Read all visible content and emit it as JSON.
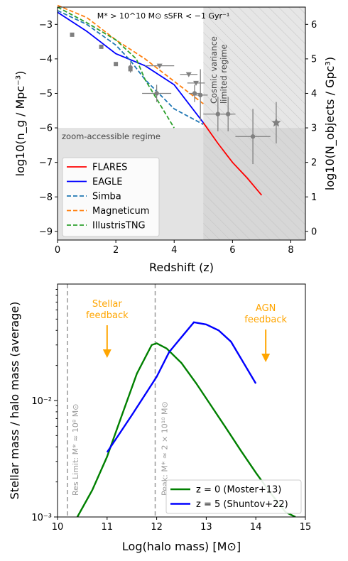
{
  "chart_data": [
    {
      "type": "line",
      "title": "M* > 10^10 M⊙ sSFR < −1 Gyr⁻¹",
      "xlabel": "Redshift (z)",
      "ylabel": "log10(n_g / Mpc⁻³)",
      "ylabel_right": "log10(N_objects / Gpc³)",
      "xlim": [
        0,
        8.5
      ],
      "ylim": [
        -9.25,
        -2.5
      ],
      "ylim_right": [
        -0.25,
        6.5
      ],
      "xticks": [
        0,
        2,
        4,
        6,
        8
      ],
      "yticks": [
        -9,
        -8,
        -7,
        -6,
        -5,
        -4,
        -3
      ],
      "yticks_right": [
        0,
        1,
        2,
        3,
        4,
        5,
        6
      ],
      "legend_position": "lower-left",
      "grid": false,
      "annotations": [
        "zoom-accessible regime",
        "Cosmic variance limited regime"
      ],
      "regions": {
        "zoom_accessible_ymax": -6.0,
        "cosmic_variance_xmin": 5.0
      },
      "series": [
        {
          "name": "FLARES",
          "color": "#ff0000",
          "style": "solid",
          "x": [
            5,
            5.5,
            6,
            6.5,
            7
          ],
          "y": [
            -5.85,
            -6.45,
            -7.0,
            -7.45,
            -7.95
          ]
        },
        {
          "name": "EAGLE",
          "color": "#0000ff",
          "style": "solid",
          "x": [
            0,
            1,
            2,
            3,
            4,
            5
          ],
          "y": [
            -2.65,
            -3.2,
            -3.85,
            -4.2,
            -4.75,
            -5.85
          ]
        },
        {
          "name": "Simba",
          "color": "#1f77b4",
          "style": "dashed",
          "x": [
            0,
            1,
            2,
            2.5,
            3,
            4,
            5
          ],
          "y": [
            -2.6,
            -3.0,
            -3.6,
            -4.05,
            -4.6,
            -5.45,
            -5.9
          ]
        },
        {
          "name": "Magneticum",
          "color": "#ff7f0e",
          "style": "dashed",
          "x": [
            0,
            1,
            2,
            3,
            4,
            5
          ],
          "y": [
            -2.45,
            -2.8,
            -3.45,
            -4.0,
            -4.65,
            -5.3
          ]
        },
        {
          "name": "IllustrisTNG",
          "color": "#2ca02c",
          "style": "dashed",
          "x": [
            0,
            1,
            2,
            2.7,
            3,
            3.5,
            4
          ],
          "y": [
            -2.5,
            -2.95,
            -3.45,
            -4.0,
            -4.6,
            -5.3,
            -6.0
          ]
        }
      ],
      "observations": {
        "color": "#808080",
        "squares": [
          {
            "x": 0.5,
            "y": -3.3
          },
          {
            "x": 1.5,
            "y": -3.65
          },
          {
            "x": 2.0,
            "y": -4.15
          },
          {
            "x": 2.5,
            "y": -4.3
          }
        ],
        "triangles": [
          {
            "x": 3.5,
            "y": -4.2,
            "xerr": 0.5
          },
          {
            "x": 4.5,
            "y": -4.45,
            "xerr": 0.3
          },
          {
            "x": 4.75,
            "y": -4.7,
            "xerr": 0.3
          }
        ],
        "circles": [
          {
            "x": 2.5,
            "y": -4.25,
            "yerr": 0.15
          },
          {
            "x": 3.4,
            "y": -5.0,
            "xerr": 0.5,
            "yerr": 0.25
          },
          {
            "x": 4.7,
            "y": -5.0,
            "xerr": 0.2,
            "yerr": 0.25
          },
          {
            "x": 4.9,
            "y": -5.05,
            "xerr": 0.25,
            "yerr": 0.75
          },
          {
            "x": 5.5,
            "y": -5.6,
            "xerr": 0.5,
            "yerr": 0.5
          },
          {
            "x": 5.85,
            "y": -5.6,
            "xerr": 0.25,
            "yerr": 0.5
          },
          {
            "x": 6.7,
            "y": -6.25,
            "xerr": 0.6,
            "yerr": 0.8
          }
        ],
        "stars": [
          {
            "x": 7.5,
            "y": -5.85,
            "yerr": 0.6
          }
        ]
      }
    },
    {
      "type": "line",
      "xlabel": "Log(halo mass) [M⊙]",
      "ylabel": "Stellar mass / halo mass (average)",
      "xlim": [
        10,
        15
      ],
      "ylim_log": [
        0.001,
        0.1
      ],
      "yscale": "log",
      "xticks": [
        10,
        11,
        12,
        13,
        14,
        15
      ],
      "ytick_labels": [
        "10⁻³",
        "10⁻²"
      ],
      "legend_position": "lower-right",
      "grid": false,
      "annotations": [
        {
          "text": "Stellar feedback",
          "color": "#ffa500"
        },
        {
          "text": "AGN feedback",
          "color": "#ffa500"
        },
        {
          "text": "Res Limit: M* ≈ 10⁸ M⊙",
          "color": "#999999"
        },
        {
          "text": "Peak: M* ≈ 2 × 10¹⁰ M⊙",
          "color": "#999999"
        }
      ],
      "vlines": [
        10.2,
        11.97
      ],
      "series": [
        {
          "name": "z = 0 (Moster+13)",
          "color": "#008000",
          "x": [
            10.4,
            10.7,
            11.0,
            11.3,
            11.6,
            11.9,
            12.0,
            12.2,
            12.5,
            12.8,
            13.1,
            13.4,
            13.7,
            14.0,
            14.3,
            14.6,
            14.8
          ],
          "y": [
            0.001,
            0.0017,
            0.0033,
            0.0075,
            0.017,
            0.03,
            0.031,
            0.028,
            0.021,
            0.014,
            0.009,
            0.0058,
            0.0037,
            0.0024,
            0.0016,
            0.0011,
            0.001
          ]
        },
        {
          "name": "z = 5 (Shuntov+22)",
          "color": "#0000ff",
          "x": [
            11.0,
            11.5,
            12.0,
            12.25,
            12.5,
            12.75,
            13.0,
            13.25,
            13.5,
            14.0
          ],
          "y": [
            0.0036,
            0.0075,
            0.016,
            0.026,
            0.035,
            0.047,
            0.045,
            0.04,
            0.032,
            0.014
          ]
        }
      ]
    }
  ]
}
